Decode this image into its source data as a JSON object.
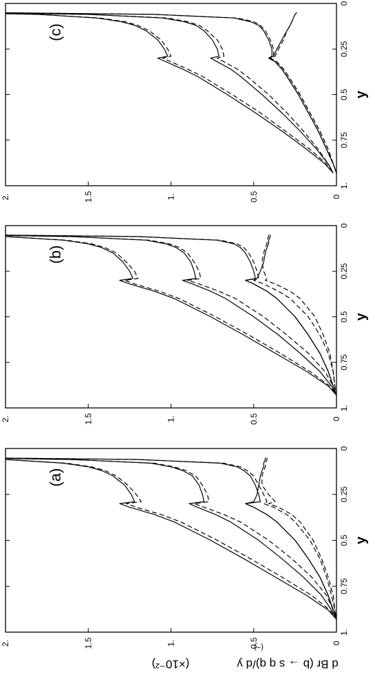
{
  "figure": {
    "ylabel": "d Br (b → s q̄ q)/d y",
    "ylabel_parts": {
      "main": "d Br (b → s q q)/d y",
      "scale": "(×10⁻²)",
      "bars": "(−)"
    },
    "xlabel": "y"
  },
  "chart_data": [
    {
      "type": "line",
      "panel_label": "(a)",
      "xlabel": "y",
      "ylabel": "d Br (b → s q̄ q)/d y (×10⁻²)",
      "xlim": [
        0,
        1
      ],
      "ylim": [
        0,
        2
      ],
      "x_ticks": [
        "0",
        "0.25",
        "0.5",
        "0.75",
        "1."
      ],
      "y_ticks": [
        "0",
        "0.5",
        "1.",
        "1.5",
        "2."
      ],
      "grid": false,
      "x": [
        0.05,
        0.06,
        0.08,
        0.1,
        0.12,
        0.15,
        0.2,
        0.25,
        0.29,
        0.3,
        0.32,
        0.36,
        0.4,
        0.5,
        0.6,
        0.7,
        0.8,
        0.88,
        0.93
      ],
      "series": [
        {
          "style": "solid",
          "values": [
            2.4,
            2.0,
            1.65,
            1.5,
            1.42,
            1.35,
            1.28,
            1.24,
            1.22,
            1.31,
            1.25,
            1.1,
            0.98,
            0.76,
            0.56,
            0.37,
            0.18,
            0.05,
            0.0
          ]
        },
        {
          "style": "dashed",
          "values": [
            2.4,
            2.0,
            1.63,
            1.48,
            1.4,
            1.33,
            1.26,
            1.21,
            1.18,
            1.27,
            1.21,
            1.06,
            0.94,
            0.72,
            0.52,
            0.33,
            0.15,
            0.04,
            0.0
          ]
        },
        {
          "style": "solid",
          "values": [
            2.3,
            1.6,
            1.12,
            1.0,
            0.93,
            0.87,
            0.83,
            0.81,
            0.8,
            0.89,
            0.84,
            0.73,
            0.64,
            0.47,
            0.33,
            0.2,
            0.09,
            0.03,
            0.0
          ]
        },
        {
          "style": "dashed",
          "values": [
            2.3,
            1.6,
            1.1,
            0.98,
            0.91,
            0.85,
            0.81,
            0.78,
            0.77,
            0.86,
            0.8,
            0.68,
            0.58,
            0.41,
            0.27,
            0.15,
            0.06,
            0.02,
            0.0
          ]
        },
        {
          "style": "solid",
          "values": [
            2.2,
            1.2,
            0.7,
            0.6,
            0.56,
            0.52,
            0.49,
            0.47,
            0.46,
            0.55,
            0.5,
            0.42,
            0.36,
            0.25,
            0.17,
            0.1,
            0.05,
            0.02,
            0.0
          ]
        },
        {
          "style": "dashed",
          "values": [
            2.2,
            1.2,
            0.68,
            0.58,
            0.54,
            0.5,
            0.47,
            0.44,
            0.42,
            0.44,
            0.38,
            0.3,
            0.25,
            0.16,
            0.1,
            0.06,
            0.03,
            0.01,
            0.0
          ]
        },
        {
          "style": "solid",
          "values": [
            0.43,
            0.43,
            0.44,
            0.44,
            0.45,
            0.46,
            0.47,
            0.48,
            0.5,
            0.55,
            0.5,
            0.42,
            0.36,
            0.25,
            0.17,
            0.1,
            0.05,
            0.02,
            0.0
          ]
        },
        {
          "style": "dashed",
          "values": [
            0.42,
            0.42,
            0.43,
            0.43,
            0.44,
            0.45,
            0.45,
            0.41,
            0.37,
            0.41,
            0.35,
            0.27,
            0.22,
            0.14,
            0.09,
            0.05,
            0.02,
            0.01,
            0.0
          ]
        }
      ]
    },
    {
      "type": "line",
      "panel_label": "(b)",
      "xlabel": "y",
      "ylabel": "d Br (b → s q̄ q)/d y (×10⁻²)",
      "xlim": [
        0,
        1
      ],
      "ylim": [
        0,
        2
      ],
      "x_ticks": [
        "0",
        "0.25",
        "0.5",
        "0.75",
        "1."
      ],
      "y_ticks": [
        "0",
        "0.5",
        "1.",
        "1.5",
        "2."
      ],
      "grid": false,
      "x": [
        0.05,
        0.06,
        0.08,
        0.1,
        0.12,
        0.15,
        0.2,
        0.25,
        0.29,
        0.3,
        0.32,
        0.36,
        0.4,
        0.5,
        0.6,
        0.7,
        0.8,
        0.88,
        0.93
      ],
      "series": [
        {
          "style": "solid",
          "values": [
            2.4,
            2.0,
            1.65,
            1.5,
            1.42,
            1.35,
            1.29,
            1.25,
            1.23,
            1.31,
            1.25,
            1.1,
            0.98,
            0.76,
            0.56,
            0.37,
            0.18,
            0.05,
            0.0
          ]
        },
        {
          "style": "dashed",
          "values": [
            2.4,
            2.0,
            1.63,
            1.48,
            1.4,
            1.33,
            1.27,
            1.22,
            1.2,
            1.28,
            1.22,
            1.07,
            0.95,
            0.73,
            0.53,
            0.34,
            0.16,
            0.04,
            0.0
          ]
        },
        {
          "style": "solid",
          "values": [
            2.3,
            1.6,
            1.15,
            1.03,
            0.97,
            0.92,
            0.88,
            0.86,
            0.85,
            0.93,
            0.87,
            0.76,
            0.67,
            0.5,
            0.35,
            0.22,
            0.1,
            0.03,
            0.0
          ]
        },
        {
          "style": "dashed",
          "values": [
            2.3,
            1.6,
            1.13,
            1.01,
            0.95,
            0.9,
            0.86,
            0.83,
            0.82,
            0.9,
            0.83,
            0.71,
            0.61,
            0.44,
            0.3,
            0.17,
            0.07,
            0.02,
            0.0
          ]
        },
        {
          "style": "solid",
          "values": [
            2.2,
            1.2,
            0.72,
            0.62,
            0.58,
            0.55,
            0.52,
            0.5,
            0.49,
            0.55,
            0.5,
            0.42,
            0.36,
            0.25,
            0.17,
            0.1,
            0.05,
            0.02,
            0.0
          ]
        },
        {
          "style": "dashed",
          "values": [
            2.2,
            1.2,
            0.7,
            0.6,
            0.56,
            0.53,
            0.5,
            0.48,
            0.47,
            0.5,
            0.44,
            0.35,
            0.28,
            0.17,
            0.1,
            0.05,
            0.02,
            0.01,
            0.0
          ]
        },
        {
          "style": "solid",
          "values": [
            0.4,
            0.4,
            0.41,
            0.41,
            0.42,
            0.43,
            0.44,
            0.46,
            0.48,
            0.55,
            0.5,
            0.42,
            0.36,
            0.25,
            0.17,
            0.1,
            0.05,
            0.02,
            0.0
          ]
        },
        {
          "style": "dashed",
          "values": [
            0.41,
            0.41,
            0.42,
            0.42,
            0.43,
            0.44,
            0.45,
            0.44,
            0.42,
            0.43,
            0.37,
            0.28,
            0.22,
            0.13,
            0.08,
            0.04,
            0.02,
            0.01,
            0.0
          ]
        }
      ]
    },
    {
      "type": "line",
      "panel_label": "(c)",
      "xlabel": "y",
      "ylabel": "d Br (b → s q̄ q)/d y (×10⁻²)",
      "xlim": [
        0,
        1
      ],
      "ylim": [
        0,
        2
      ],
      "x_ticks": [
        "0",
        "0.25",
        "0.5",
        "0.75",
        "1."
      ],
      "y_ticks": [
        "0",
        "0.5",
        "1.",
        "1.5",
        "2."
      ],
      "grid": false,
      "x": [
        0.05,
        0.06,
        0.08,
        0.1,
        0.12,
        0.15,
        0.2,
        0.25,
        0.29,
        0.3,
        0.32,
        0.36,
        0.4,
        0.5,
        0.6,
        0.7,
        0.8,
        0.88,
        0.93
      ],
      "series": [
        {
          "style": "solid",
          "values": [
            2.3,
            1.8,
            1.45,
            1.3,
            1.22,
            1.15,
            1.08,
            1.04,
            1.02,
            1.08,
            1.03,
            0.93,
            0.84,
            0.66,
            0.49,
            0.33,
            0.18,
            0.07,
            0.02
          ]
        },
        {
          "style": "dashed",
          "values": [
            2.3,
            1.8,
            1.43,
            1.28,
            1.2,
            1.13,
            1.06,
            1.02,
            1.0,
            1.05,
            1.0,
            0.9,
            0.81,
            0.63,
            0.46,
            0.31,
            0.16,
            0.06,
            0.02
          ]
        },
        {
          "style": "solid",
          "values": [
            2.2,
            1.5,
            1.05,
            0.92,
            0.85,
            0.8,
            0.75,
            0.72,
            0.71,
            0.76,
            0.72,
            0.64,
            0.58,
            0.45,
            0.33,
            0.22,
            0.12,
            0.05,
            0.02
          ]
        },
        {
          "style": "dashed",
          "values": [
            2.2,
            1.5,
            1.02,
            0.9,
            0.83,
            0.78,
            0.72,
            0.69,
            0.68,
            0.72,
            0.68,
            0.6,
            0.54,
            0.41,
            0.3,
            0.2,
            0.11,
            0.05,
            0.02
          ]
        },
        {
          "style": "solid",
          "values": [
            2.1,
            1.1,
            0.62,
            0.52,
            0.47,
            0.44,
            0.41,
            0.39,
            0.39,
            0.41,
            0.37,
            0.33,
            0.3,
            0.23,
            0.17,
            0.11,
            0.06,
            0.02,
            0.0
          ]
        },
        {
          "style": "dashed",
          "values": [
            2.1,
            1.1,
            0.6,
            0.5,
            0.46,
            0.43,
            0.4,
            0.38,
            0.38,
            0.4,
            0.36,
            0.32,
            0.29,
            0.22,
            0.16,
            0.1,
            0.05,
            0.02,
            0.0
          ]
        },
        {
          "style": "solid",
          "values": [
            0.24,
            0.25,
            0.26,
            0.27,
            0.28,
            0.3,
            0.33,
            0.36,
            0.38,
            0.41,
            0.37,
            0.33,
            0.3,
            0.23,
            0.17,
            0.11,
            0.06,
            0.02,
            0.0
          ]
        },
        {
          "style": "dashed",
          "values": [
            0.24,
            0.25,
            0.26,
            0.27,
            0.28,
            0.3,
            0.32,
            0.35,
            0.37,
            0.4,
            0.36,
            0.32,
            0.29,
            0.22,
            0.16,
            0.1,
            0.05,
            0.02,
            0.0
          ]
        }
      ]
    }
  ]
}
